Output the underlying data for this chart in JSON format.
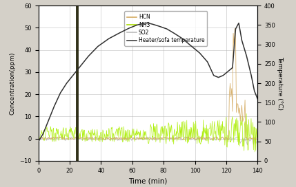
{
  "xlabel": "Time (min)",
  "ylabel_left": "Concentration(ppm)",
  "ylabel_right": "Temperature (°C)",
  "xlim": [
    0,
    140
  ],
  "ylim_left": [
    -10,
    60
  ],
  "ylim_right": [
    0,
    400
  ],
  "yticks_left": [
    -10,
    0,
    10,
    20,
    30,
    40,
    50,
    60
  ],
  "yticks_right": [
    0,
    50,
    100,
    150,
    200,
    250,
    300,
    350,
    400
  ],
  "xticks": [
    0,
    20,
    40,
    60,
    80,
    100,
    120,
    140
  ],
  "vertical_line_x": 25,
  "legend_labels": [
    "HCN",
    "NH3",
    "SO2",
    "Heater/sofa temperature"
  ],
  "legend_colors": [
    "#d4aa60",
    "#aadd00",
    "#bbbbbb",
    "#404040"
  ],
  "background_color": "#d4d0c8",
  "plot_bg_color": "#ffffff",
  "grid_color": "#b0b0b0",
  "temp_curve_color": "#303030",
  "nh3_color": "#aaee00",
  "hcn_color": "#d4aa60",
  "so2_color": "#bbbbbb",
  "vline_color": "#1a1a00",
  "temp_points_t": [
    0,
    3,
    6,
    10,
    14,
    18,
    22,
    25,
    28,
    32,
    38,
    45,
    52,
    58,
    63,
    68,
    70,
    73,
    77,
    82,
    87,
    92,
    97,
    103,
    108,
    112,
    115,
    118,
    121,
    124,
    126,
    128,
    130,
    133,
    136,
    138,
    140
  ],
  "temp_points_v": [
    50,
    70,
    100,
    140,
    175,
    200,
    220,
    235,
    250,
    270,
    295,
    315,
    330,
    342,
    350,
    355,
    355,
    352,
    347,
    340,
    328,
    315,
    298,
    278,
    255,
    220,
    215,
    220,
    230,
    240,
    340,
    355,
    310,
    270,
    220,
    180,
    160
  ]
}
